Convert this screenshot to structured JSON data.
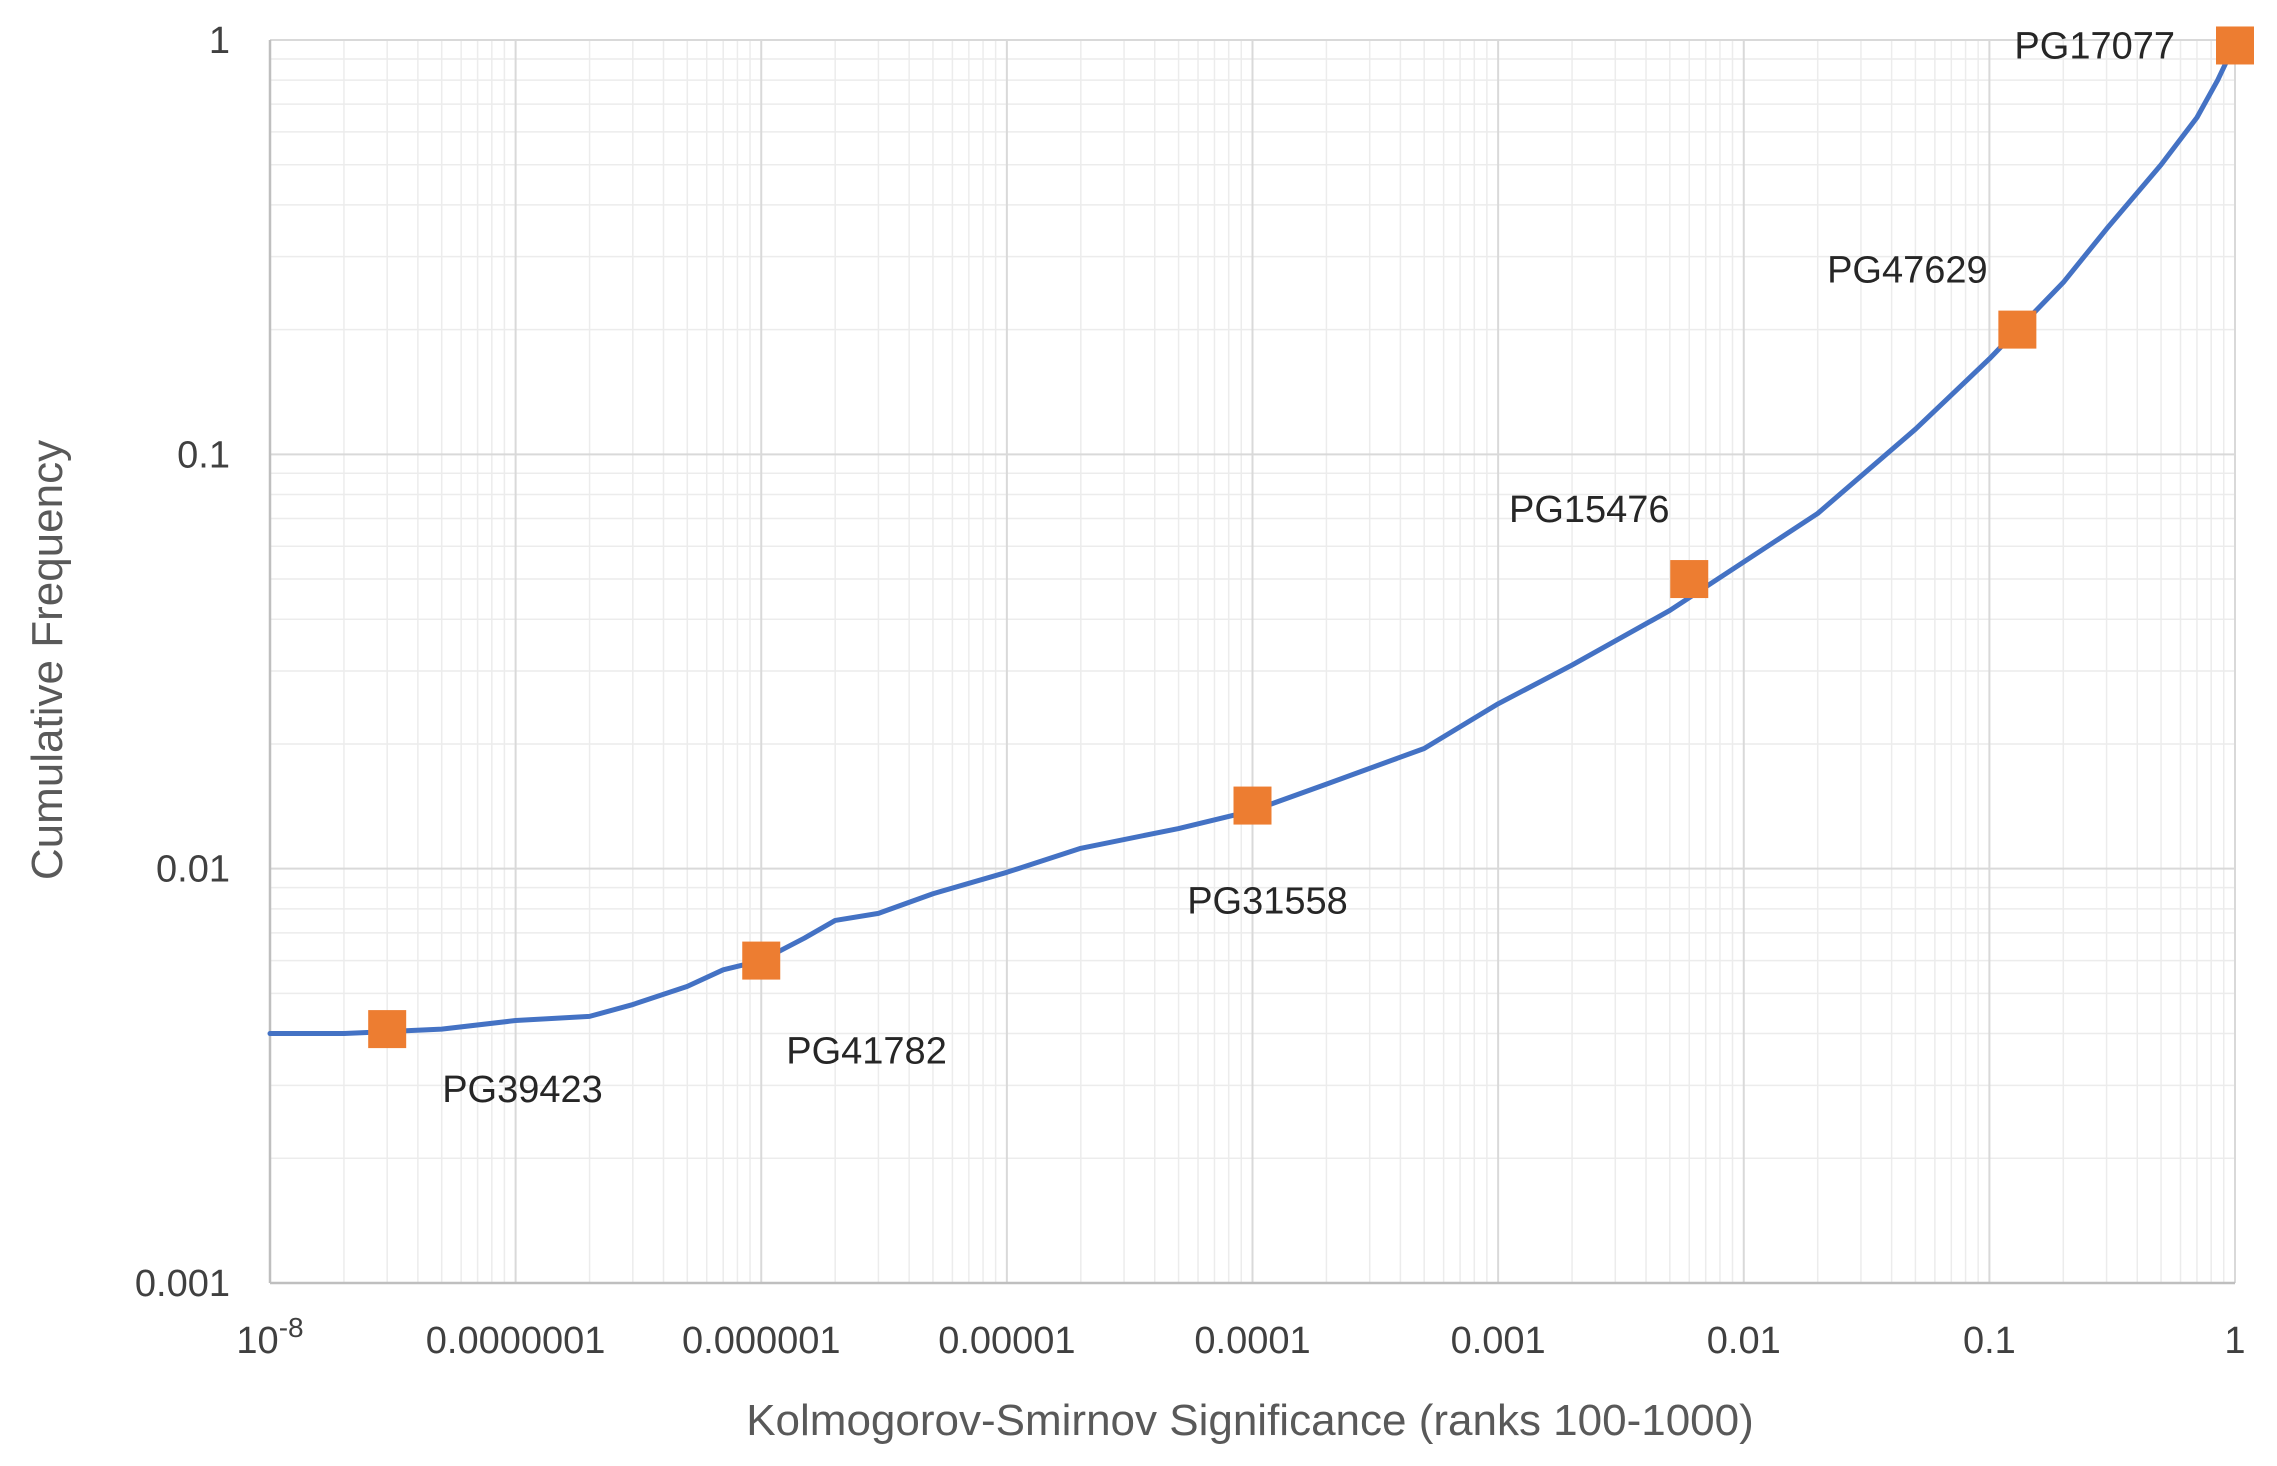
{
  "chart_data": {
    "type": "line",
    "title": "",
    "xlabel": "Kolmogorov-Smirnov Significance (ranks 100-1000)",
    "ylabel": "Cumulative Frequency",
    "xscale": "log",
    "yscale": "log",
    "xlim": [
      1e-08,
      1
    ],
    "ylim": [
      0.001,
      1
    ],
    "grid": true,
    "legend": "none",
    "x_tick_labels": [
      "10",
      "0.0000001",
      "0.000001",
      "0.00001",
      "0.0001",
      "0.001",
      "0.01",
      "0.1",
      "1"
    ],
    "x_first_tick_exponent": "-8",
    "y_tick_labels": [
      "0.001",
      "0.01",
      "0.1",
      "1"
    ],
    "colors": {
      "line": "#4472C4",
      "marker": "#ED7D31",
      "grid": "#D9D9D9",
      "axis": "#BFBFBF"
    },
    "series": [
      {
        "x": [
          1e-08,
          2e-08,
          5e-08,
          1e-07,
          2e-07,
          3e-07,
          5e-07,
          7e-07,
          1e-06,
          1.5e-06,
          2e-06,
          3e-06,
          5e-06,
          1e-05,
          2e-05,
          5e-05,
          0.0001,
          0.0002,
          0.0005,
          0.001,
          0.002,
          0.005,
          0.01,
          0.02,
          0.05,
          0.1,
          0.2,
          0.3,
          0.5,
          0.7,
          0.85,
          1
        ],
        "y": [
          0.004,
          0.004,
          0.0041,
          0.0043,
          0.0044,
          0.0047,
          0.0052,
          0.0057,
          0.006,
          0.0068,
          0.0075,
          0.0078,
          0.0087,
          0.0098,
          0.0112,
          0.0125,
          0.0138,
          0.016,
          0.0195,
          0.025,
          0.031,
          0.042,
          0.055,
          0.072,
          0.115,
          0.17,
          0.26,
          0.35,
          0.5,
          0.65,
          0.8,
          0.98
        ]
      },
      {
        "name": "highlighted",
        "points": [
          {
            "label": "PG39423",
            "x": 3e-08,
            "y": 0.0041
          },
          {
            "label": "PG41782",
            "x": 1e-06,
            "y": 0.006
          },
          {
            "label": "PG31558",
            "x": 0.0001,
            "y": 0.0142
          },
          {
            "label": "PG15476",
            "x": 0.006,
            "y": 0.05
          },
          {
            "label": "PG47629",
            "x": 0.13,
            "y": 0.2
          },
          {
            "label": "PG17077",
            "x": 1,
            "y": 0.97
          }
        ]
      }
    ]
  }
}
